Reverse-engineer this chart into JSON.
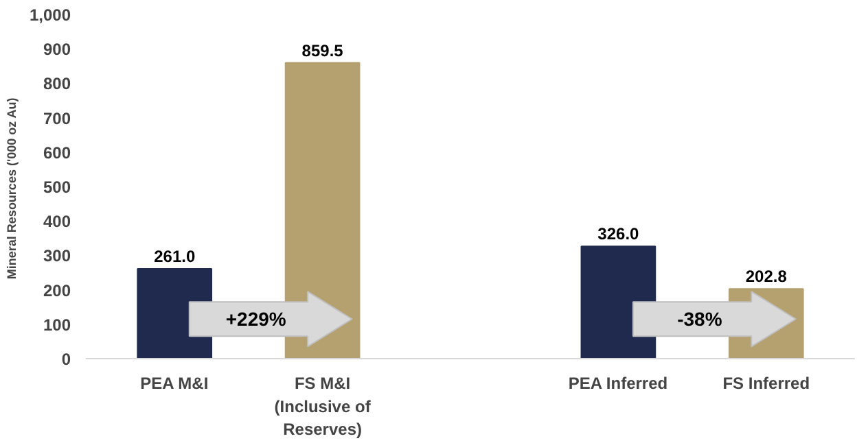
{
  "chart_data": {
    "type": "bar",
    "ylabel": "Mineral Resources  ('000 oz Au)",
    "categories": [
      "PEA M&I",
      "FS M&I\n(Inclusive of\nReserves)",
      null,
      "PEA Inferred",
      "FS Inferred"
    ],
    "values": [
      261.0,
      859.5,
      null,
      326.0,
      202.8
    ],
    "colors": [
      "#1f2a4e",
      "#b5a06f",
      null,
      "#1f2a4e",
      "#b5a06f"
    ],
    "value_labels": [
      "261.0",
      "859.5",
      null,
      "326.0",
      "202.8"
    ],
    "ylim": [
      0,
      1000
    ],
    "yticks": [
      0,
      100,
      200,
      300,
      400,
      500,
      600,
      700,
      800,
      900,
      {
        "value": 1000,
        "label": "1,000"
      }
    ],
    "annotations": [
      "+229%",
      "-38%"
    ],
    "grid": false
  }
}
